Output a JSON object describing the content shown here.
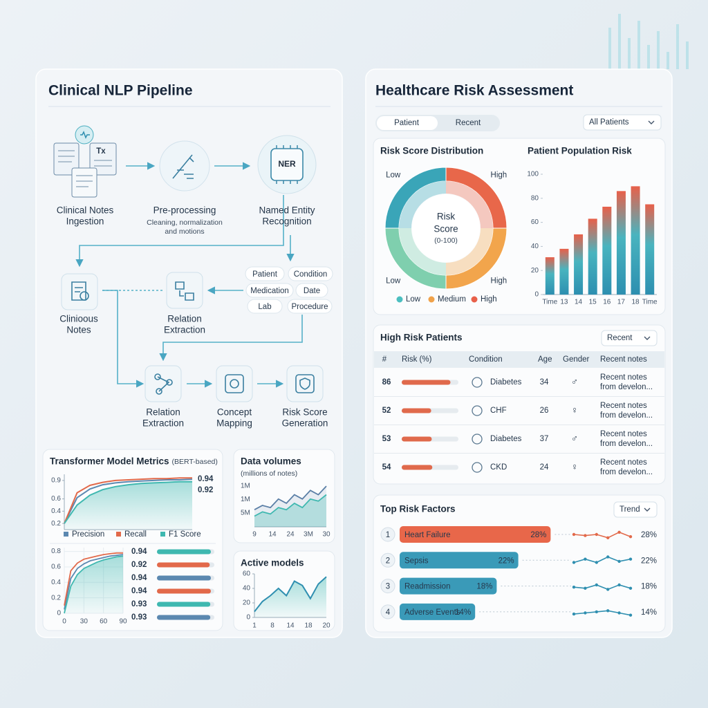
{
  "left_panel": {
    "title": "Clinical NLP Pipeline",
    "pipeline": {
      "ingestion": {
        "icon_text": "Tx",
        "label": [
          "Clinical Notes",
          "Ingestion"
        ]
      },
      "preprocessing": {
        "label": [
          "Pre-processing"
        ],
        "sublabel": [
          "Cleaning, normalization",
          "and motions"
        ]
      },
      "ner": {
        "icon_text": "NER",
        "label": [
          "Named Entity",
          "Recognition"
        ]
      },
      "notes": {
        "label": [
          "Clinioous",
          "Notes"
        ]
      },
      "relation_extraction_1": {
        "label": [
          "Relation",
          "Extraction"
        ]
      },
      "entities": [
        "Patient",
        "Condition",
        "Medication",
        "Date",
        "Lab",
        "Procedure"
      ],
      "relation_extraction_2": {
        "label": [
          "Relation",
          "Extraction"
        ]
      },
      "concept_mapping": {
        "label": [
          "Concept",
          "Mapping"
        ]
      },
      "risk_score": {
        "label": [
          "Risk Score",
          "Generation"
        ]
      }
    },
    "model_metrics": {
      "title": "Transformer Model Metrics",
      "title_note": "(BERT-based)",
      "curves": {
        "type": "line",
        "ylim": [
          0.1,
          1.0
        ],
        "yticks": [
          0.9,
          0.6,
          0.4,
          0.2
        ],
        "series": [
          {
            "name": "Precision",
            "color": "#5b88b0",
            "values": [
              0.2,
              0.62,
              0.76,
              0.83,
              0.86,
              0.88,
              0.89,
              0.9,
              0.91,
              0.91,
              0.92
            ]
          },
          {
            "name": "Recall",
            "color": "#e2694a",
            "values": [
              0.2,
              0.7,
              0.82,
              0.87,
              0.9,
              0.91,
              0.92,
              0.93,
              0.93,
              0.94,
              0.94
            ]
          },
          {
            "name": "F1 Score",
            "color": "#3fb8b0",
            "values": [
              0.2,
              0.5,
              0.66,
              0.75,
              0.8,
              0.83,
              0.85,
              0.86,
              0.87,
              0.88,
              0.88
            ]
          }
        ],
        "end_labels": [
          0.94,
          0.92
        ]
      },
      "training": {
        "type": "line",
        "xlim": [
          0,
          90
        ],
        "xticks": [
          0,
          30,
          60,
          90
        ],
        "ylim": [
          0,
          0.85
        ],
        "yticks": [
          0.8,
          0.6,
          0.4,
          0.2,
          0
        ],
        "x": [
          0,
          10,
          20,
          30,
          40,
          50,
          60,
          70,
          80,
          90
        ],
        "series": [
          {
            "color": "#5b88b0",
            "values": [
              0.05,
              0.45,
              0.58,
              0.64,
              0.68,
              0.7,
              0.72,
              0.74,
              0.75,
              0.76
            ]
          },
          {
            "color": "#e2694a",
            "values": [
              0.1,
              0.55,
              0.65,
              0.7,
              0.72,
              0.74,
              0.76,
              0.77,
              0.78,
              0.78
            ]
          },
          {
            "color": "#3fb8b0",
            "values": [
              0,
              0.35,
              0.5,
              0.58,
              0.62,
              0.66,
              0.69,
              0.71,
              0.73,
              0.74
            ]
          }
        ]
      },
      "scores": {
        "type": "bar",
        "values": [
          0.94,
          0.92,
          0.94,
          0.94,
          0.93,
          0.93
        ],
        "colors": [
          "#3fb8b0",
          "#e2694a",
          "#5b88b0",
          "#e2694a",
          "#3fb8b0",
          "#5b88b0"
        ]
      }
    },
    "data_volumes": {
      "type": "line",
      "title": "Data volumes",
      "subtitle": "(millions of notes)",
      "y_labels": [
        "1M",
        "1M",
        "5M"
      ],
      "x_labels": [
        "9",
        "14",
        "24",
        "3M",
        "30"
      ],
      "ylim": [
        0,
        10
      ],
      "series": [
        {
          "color": "#5b7fa6",
          "values": [
            4,
            5,
            4.5,
            6.5,
            5.5,
            7.5,
            6.5,
            8.5,
            7.5,
            9.5
          ]
        },
        {
          "color": "#3fb8b0",
          "values": [
            2.5,
            3.5,
            3,
            4.5,
            4,
            5.5,
            4.5,
            6.5,
            6,
            7.5
          ]
        }
      ]
    },
    "active_models": {
      "type": "line",
      "title": "Active models",
      "ylim": [
        0,
        60
      ],
      "yticks": [
        60,
        40,
        20,
        0
      ],
      "x_labels": [
        "1",
        "8",
        "14",
        "18",
        "20"
      ],
      "color": "#2f8fb0",
      "values": [
        8,
        22,
        30,
        40,
        30,
        50,
        44,
        26,
        46,
        56
      ]
    }
  },
  "right_panel": {
    "title": "Healthcare Risk Assessment",
    "tabs": [
      "Patient",
      "Recent"
    ],
    "filter": "All Patients",
    "risk_distribution": {
      "type": "pie",
      "title": "Risk Score Distribution",
      "center_text": [
        "Risk",
        "Score",
        "(0-100)"
      ],
      "slices": [
        {
          "label": "High",
          "value": 25,
          "color": "#e8674a"
        },
        {
          "label": "High",
          "value": 25,
          "color": "#f2a54c"
        },
        {
          "label": "Low",
          "value": 25,
          "color": "#7fcfae"
        },
        {
          "label": "Low",
          "value": 25,
          "color": "#3aa5b8"
        }
      ],
      "legend": [
        {
          "name": "Low",
          "color": "#4bbfc0"
        },
        {
          "name": "Medium",
          "color": "#f0a24a"
        },
        {
          "name": "High",
          "color": "#e8604a"
        }
      ]
    },
    "population_risk": {
      "type": "bar",
      "title": "Patient Population Risk",
      "categories": [
        "Time",
        "13",
        "14",
        "15",
        "16",
        "17",
        "18",
        "Time"
      ],
      "values": [
        31,
        38,
        50,
        63,
        73,
        86,
        90,
        75
      ],
      "ylim": [
        0,
        100
      ],
      "yticks": [
        0,
        20,
        40,
        60,
        80,
        100
      ]
    },
    "high_risk_patients": {
      "title": "High Risk Patients",
      "filter": "Recent",
      "columns": [
        "#",
        "Risk (%)",
        "Condition",
        "Age",
        "Gender",
        "Recent notes"
      ],
      "rows": [
        {
          "risk": 86,
          "condition": "Diabetes",
          "age": 34,
          "gender": "♂",
          "notes": [
            "Recent notes",
            "from develon..."
          ]
        },
        {
          "risk": 52,
          "condition": "CHF",
          "age": 26,
          "gender": "♀",
          "notes": [
            "Recent notes",
            "from develon..."
          ]
        },
        {
          "risk": 53,
          "condition": "Diabetes",
          "age": 37,
          "gender": "♂",
          "notes": [
            "Recent notes",
            "from develon..."
          ]
        },
        {
          "risk": 54,
          "condition": "CKD",
          "age": 24,
          "gender": "♀",
          "notes": [
            "Recent notes",
            "from develon..."
          ]
        }
      ]
    },
    "top_risk_factors": {
      "title": "Top Risk Factors",
      "filter": "Trend",
      "trend_ylim": [
        0,
        10
      ],
      "items": [
        {
          "rank": 1,
          "name": "Heart Failure",
          "value": 28,
          "value_label": "28%",
          "color": "#e8674a",
          "trend_color": "#e2694a",
          "trend": [
            5,
            4,
            5,
            2,
            7,
            3
          ]
        },
        {
          "rank": 2,
          "name": "Sepsis",
          "value": 22,
          "value_label": "22%",
          "color": "#3a9ab8",
          "trend_color": "#2f8fb0",
          "trend": [
            3,
            6,
            3,
            8,
            4,
            6
          ]
        },
        {
          "rank": 3,
          "name": "Readmission",
          "value": 18,
          "value_label": "18%",
          "color": "#3a9ab8",
          "trend_color": "#2f8fb0",
          "trend": [
            4,
            3,
            6,
            2,
            6,
            3
          ]
        },
        {
          "rank": 4,
          "name": "Adverse Events",
          "value": 14,
          "value_label": "14%",
          "color": "#3a9ab8",
          "trend_color": "#2f8fb0",
          "trend": [
            3,
            4,
            5,
            6,
            4,
            2
          ]
        }
      ]
    }
  }
}
